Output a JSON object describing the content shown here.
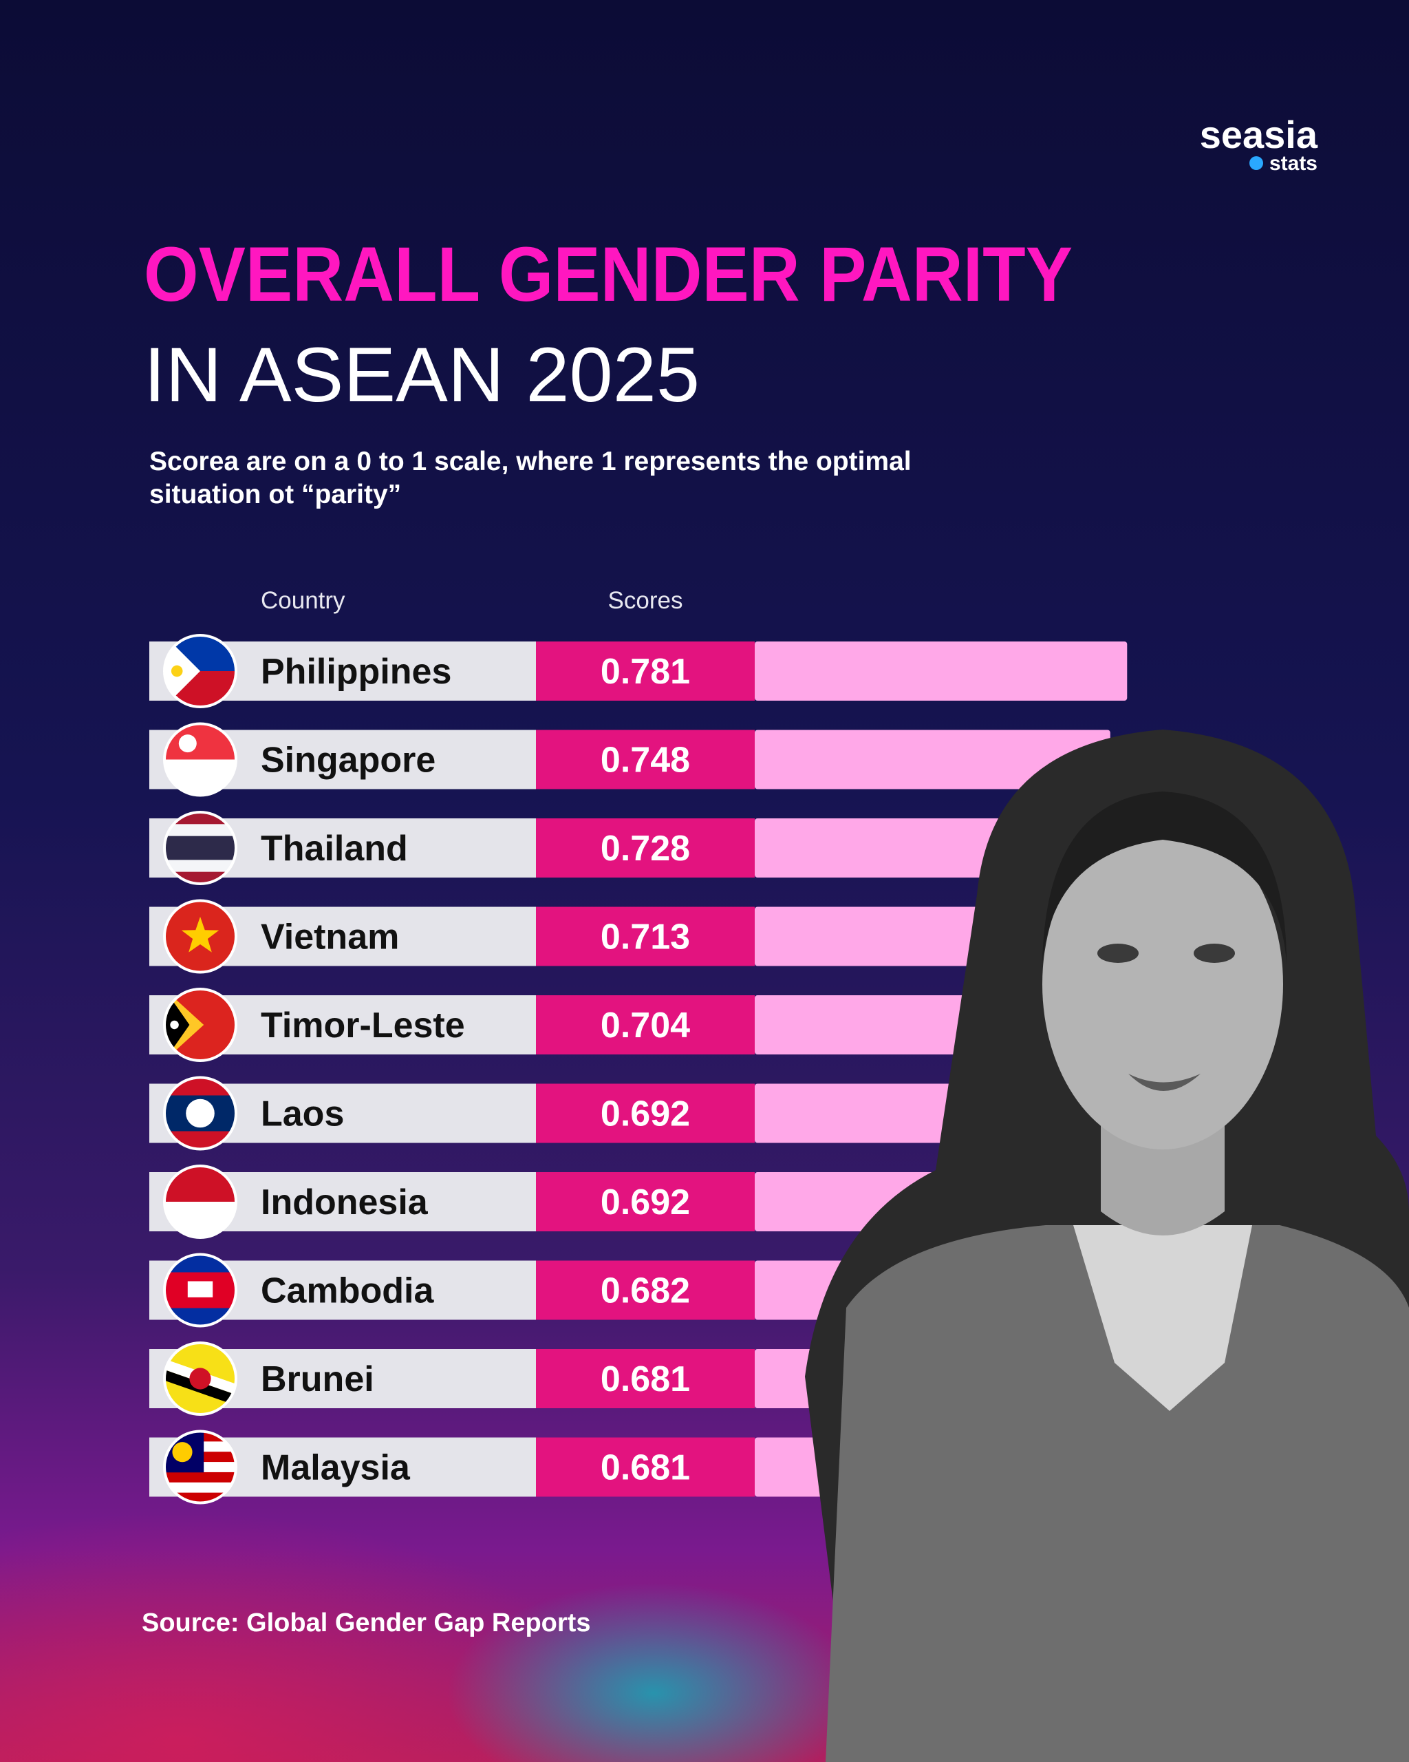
{
  "brand": {
    "name": "seasia",
    "tagline": "stats"
  },
  "chart_data": {
    "type": "bar",
    "orientation": "horizontal",
    "title": "OVERALL GENDER PARITY",
    "title_line2": "IN ASEAN 2025",
    "subtitle": [
      "Scorea are on a 0 to 1 scale, where 1 represents the optimal",
      "situation ot “parity”"
    ],
    "column_headers": [
      "Country",
      "Scores"
    ],
    "categories": [
      "Philippines",
      "Singapore",
      "Thailand",
      "Vietnam",
      "Timor-Leste",
      "Laos",
      "Indonesia",
      "Cambodia",
      "Brunei",
      "Malaysia"
    ],
    "values": [
      0.781,
      0.748,
      0.728,
      0.713,
      0.704,
      0.692,
      0.692,
      0.682,
      0.681,
      0.681
    ],
    "xlim": [
      0,
      1
    ],
    "color": "#ffa8e8",
    "score_cell_color": "#e3137f",
    "source": "Source: Global Gender Gap Reports"
  }
}
